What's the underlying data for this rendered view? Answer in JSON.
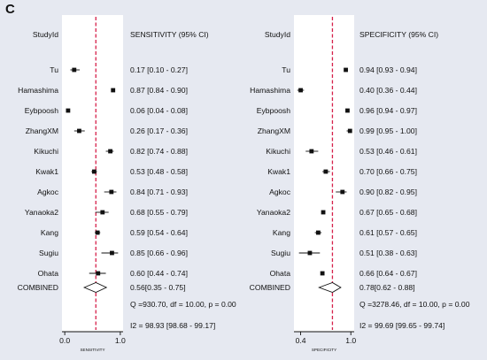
{
  "panel_label": "C",
  "chart_data": [
    {
      "type": "forest",
      "column_headers": {
        "study": "StudyId",
        "estimate": "SENSITIVITY (95% CI)"
      },
      "xlabel": "SENSITIVITY",
      "xlim": [
        -0.05,
        1.05
      ],
      "xticks": [
        0.0,
        1.0
      ],
      "xtick_labels": [
        "0.0",
        "1.0"
      ],
      "reference_line": 0.56,
      "studies": [
        {
          "name": "Tu",
          "value": 0.17,
          "lower": 0.1,
          "upper": 0.27,
          "label": "0.17 [0.10 - 0.27]"
        },
        {
          "name": "Hamashima",
          "value": 0.87,
          "lower": 0.84,
          "upper": 0.9,
          "label": "0.87 [0.84 - 0.90]"
        },
        {
          "name": "Eybpoosh",
          "value": 0.06,
          "lower": 0.04,
          "upper": 0.08,
          "label": "0.06 [0.04 - 0.08]"
        },
        {
          "name": "ZhangXM",
          "value": 0.26,
          "lower": 0.17,
          "upper": 0.36,
          "label": "0.26 [0.17 - 0.36]"
        },
        {
          "name": "Kikuchi",
          "value": 0.82,
          "lower": 0.74,
          "upper": 0.88,
          "label": "0.82 [0.74 - 0.88]"
        },
        {
          "name": "Kwak1",
          "value": 0.53,
          "lower": 0.48,
          "upper": 0.58,
          "label": "0.53 [0.48 - 0.58]"
        },
        {
          "name": "Agkoc",
          "value": 0.84,
          "lower": 0.71,
          "upper": 0.93,
          "label": "0.84 [0.71 - 0.93]"
        },
        {
          "name": "Yanaoka2",
          "value": 0.68,
          "lower": 0.55,
          "upper": 0.79,
          "label": "0.68 [0.55 - 0.79]"
        },
        {
          "name": "Kang",
          "value": 0.59,
          "lower": 0.54,
          "upper": 0.64,
          "label": "0.59 [0.54 - 0.64]"
        },
        {
          "name": "Sugiu",
          "value": 0.85,
          "lower": 0.66,
          "upper": 0.96,
          "label": "0.85 [0.66 - 0.96]"
        },
        {
          "name": "Ohata",
          "value": 0.6,
          "lower": 0.44,
          "upper": 0.74,
          "label": "0.60 [0.44 - 0.74]"
        }
      ],
      "combined": {
        "name": "COMBINED",
        "value": 0.56,
        "lower": 0.35,
        "upper": 0.75,
        "label": "0.56[0.35 - 0.75]"
      },
      "stats": [
        "Q =930.70, df = 10.00, p =  0.00",
        "I2 = 98.93 [98.68 - 99.17]"
      ]
    },
    {
      "type": "forest",
      "column_headers": {
        "study": "StudyId",
        "estimate": "SPECIFICITY (95% CI)"
      },
      "xlabel": "SPECIFICITY",
      "xlim": [
        0.32,
        1.04
      ],
      "xticks": [
        0.4,
        1.0
      ],
      "xtick_labels": [
        "0.4",
        "1.0"
      ],
      "reference_line": 0.78,
      "studies": [
        {
          "name": "Tu",
          "value": 0.94,
          "lower": 0.93,
          "upper": 0.94,
          "label": "0.94 [0.93 - 0.94]"
        },
        {
          "name": "Hamashima",
          "value": 0.4,
          "lower": 0.36,
          "upper": 0.44,
          "label": "0.40 [0.36 - 0.44]"
        },
        {
          "name": "Eybpoosh",
          "value": 0.96,
          "lower": 0.94,
          "upper": 0.97,
          "label": "0.96 [0.94 - 0.97]"
        },
        {
          "name": "ZhangXM",
          "value": 0.99,
          "lower": 0.95,
          "upper": 1.0,
          "label": "0.99 [0.95 - 1.00]"
        },
        {
          "name": "Kikuchi",
          "value": 0.53,
          "lower": 0.46,
          "upper": 0.61,
          "label": "0.53 [0.46 - 0.61]"
        },
        {
          "name": "Kwak1",
          "value": 0.7,
          "lower": 0.66,
          "upper": 0.75,
          "label": "0.70 [0.66 - 0.75]"
        },
        {
          "name": "Agkoc",
          "value": 0.9,
          "lower": 0.82,
          "upper": 0.95,
          "label": "0.90 [0.82 - 0.95]"
        },
        {
          "name": "Yanaoka2",
          "value": 0.67,
          "lower": 0.65,
          "upper": 0.68,
          "label": "0.67 [0.65 - 0.68]"
        },
        {
          "name": "Kang",
          "value": 0.61,
          "lower": 0.57,
          "upper": 0.65,
          "label": "0.61 [0.57 - 0.65]"
        },
        {
          "name": "Sugiu",
          "value": 0.51,
          "lower": 0.38,
          "upper": 0.63,
          "label": "0.51 [0.38 - 0.63]"
        },
        {
          "name": "Ohata",
          "value": 0.66,
          "lower": 0.64,
          "upper": 0.67,
          "label": "0.66 [0.64 - 0.67]"
        }
      ],
      "combined": {
        "name": "COMBINED",
        "value": 0.78,
        "lower": 0.62,
        "upper": 0.88,
        "label": "0.78[0.62 - 0.88]"
      },
      "stats": [
        "Q =3278.46, df = 10.00, p =  0.00",
        "I2 = 99.69 [99.65 - 99.74]"
      ]
    }
  ],
  "colors": {
    "background": "#e6e9f1",
    "plot_area": "#ffffff",
    "reference_line": "#d6204a",
    "ink": "#111111"
  }
}
